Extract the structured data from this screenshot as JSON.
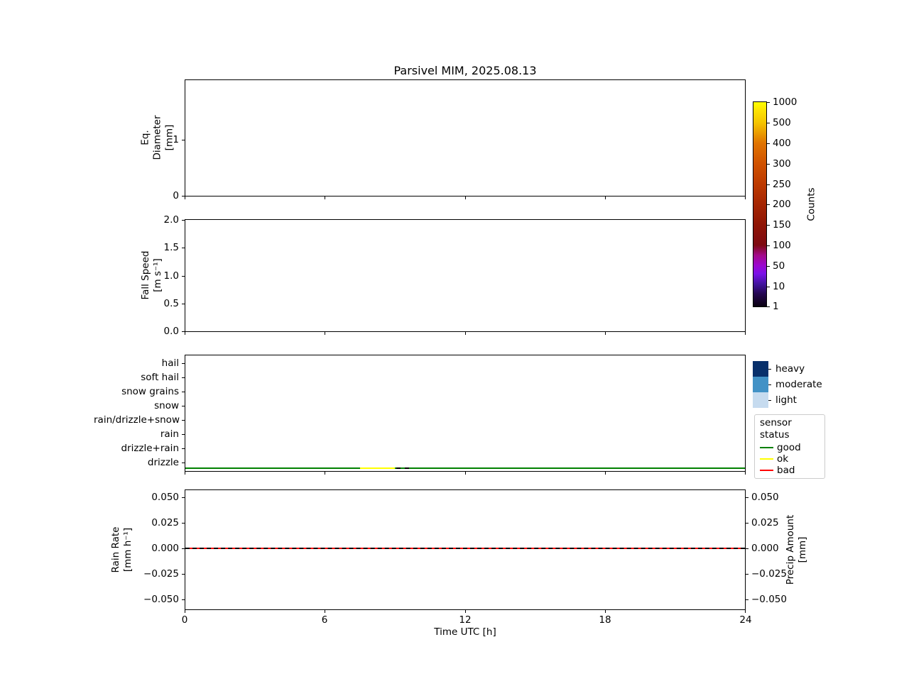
{
  "title": "Parsivel MIM, 2025.08.13",
  "xaxis": {
    "label": "Time UTC [h]",
    "ticks": [
      "0",
      "6",
      "12",
      "18",
      "24"
    ],
    "range_h": [
      0,
      24
    ]
  },
  "panels": {
    "eq_diameter": {
      "ylabel": "Eq.\nDiameter\n[mm]",
      "yticks": [
        "1",
        "0"
      ]
    },
    "fall_speed": {
      "ylabel": "Fall Speed\n[m s⁻¹]",
      "yticks": [
        "2.0",
        "1.5",
        "1.0",
        "0.5",
        "0.0"
      ]
    },
    "precip_type": {
      "categories": [
        "hail",
        "soft hail",
        "snow grains",
        "snow",
        "rain/drizzle+snow",
        "rain",
        "drizzle+rain",
        "drizzle"
      ]
    },
    "rain_rate": {
      "ylabel_left": "Rain Rate\n[mm h⁻¹]",
      "ylabel_right": "Precip Amount\n[mm]",
      "yticks": [
        "0.050",
        "0.025",
        "0.000",
        "−0.025",
        "−0.050"
      ]
    }
  },
  "colorbar": {
    "label": "Counts",
    "ticks": [
      "1000",
      "500",
      "400",
      "300",
      "250",
      "200",
      "150",
      "100",
      "50",
      "10",
      "1"
    ],
    "colormap_stops": [
      "#0a0110",
      "#41149e",
      "#9b08d0",
      "#a30a8a",
      "#7d0a12",
      "#a52603",
      "#bd3a00",
      "#d05200",
      "#e07400",
      "#f5c500",
      "#ffff00"
    ]
  },
  "legend": {
    "intensity": [
      {
        "label": "heavy",
        "color": "#08306b",
        "swatch_style": "background:#08306b"
      },
      {
        "label": "moderate",
        "color": "#4292c6",
        "swatch_style": "background:#4292c6"
      },
      {
        "label": "light",
        "color": "#c6dbef",
        "swatch_style": "background:#c6dbef"
      }
    ],
    "sensor_status": {
      "title": "sensor status",
      "items": [
        {
          "label": "good",
          "color": "#008000",
          "swatch_style": "background:#008000"
        },
        {
          "label": "ok",
          "color": "#ffff00",
          "swatch_style": "background:#ffff00"
        },
        {
          "label": "bad",
          "color": "#ff0000",
          "swatch_style": "background:#ff0000"
        }
      ]
    }
  },
  "chart_data": [
    {
      "type": "heatmap",
      "panel": "eq_diameter",
      "xlabel": "Time UTC [h]",
      "ylabel": "Eq. Diameter [mm]",
      "x_range": [
        0,
        24
      ],
      "y_range": [
        0,
        2
      ],
      "yticks": [
        0,
        1
      ],
      "values": [],
      "note": "no counts recorded - panel empty"
    },
    {
      "type": "heatmap",
      "panel": "fall_speed",
      "xlabel": "Time UTC [h]",
      "ylabel": "Fall Speed [m s⁻¹]",
      "x_range": [
        0,
        24
      ],
      "y_range": [
        0.0,
        2.0
      ],
      "yticks": [
        0.0,
        0.5,
        1.0,
        1.5,
        2.0
      ],
      "values": [],
      "note": "no counts recorded - panel empty"
    },
    {
      "type": "line",
      "panel": "precip_type",
      "categories": [
        "hail",
        "soft hail",
        "snow grains",
        "snow",
        "rain/drizzle+snow",
        "rain",
        "drizzle+rain",
        "drizzle"
      ],
      "precip_events": [],
      "status_segments": [
        {
          "status": "good",
          "color": "#008000",
          "from_h": 0.0,
          "to_h": 7.5
        },
        {
          "status": "ok",
          "color": "#ffff00",
          "from_h": 7.5,
          "to_h": 9.0
        },
        {
          "status": "good",
          "color": "#008000",
          "from_h": 9.0,
          "to_h": 24.0
        }
      ],
      "marks": [
        {
          "type": "black-dashes",
          "from_h": 9.0,
          "to_h": 9.5
        }
      ]
    },
    {
      "type": "line",
      "panel": "rain_rate",
      "x_range": [
        0,
        24
      ],
      "ylim": [
        -0.059,
        0.059
      ],
      "series": [
        {
          "name": "Rain Rate [mm h⁻¹]",
          "color": "#ff0000",
          "style": "solid",
          "x_h": [
            0,
            24
          ],
          "y": [
            0.0,
            0.0
          ]
        },
        {
          "name": "Precip Amount [mm]",
          "color": "#000000",
          "style": "dashed",
          "x_h": [
            0,
            24
          ],
          "y": [
            0.0,
            0.0
          ]
        }
      ]
    }
  ]
}
